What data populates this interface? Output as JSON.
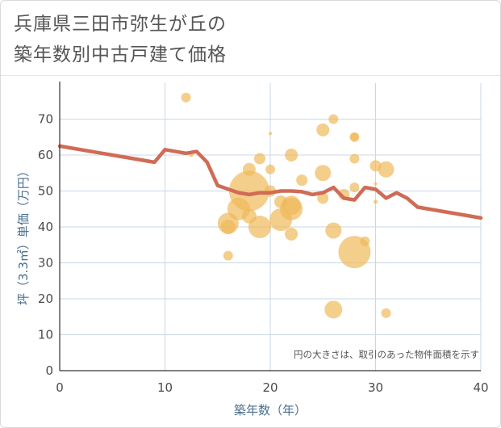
{
  "title_line1": "兵庫県三田市弥生が丘の",
  "title_line2": "築年数別中古戸建て価格",
  "chart_data": {
    "type": "scatter",
    "xlabel": "築年数（年）",
    "ylabel": "坪（3.3㎡）単価（万円）",
    "xlim": [
      0,
      40
    ],
    "ylim": [
      0,
      80
    ],
    "xticks": [
      0,
      10,
      20,
      30,
      40
    ],
    "yticks": [
      0,
      10,
      20,
      30,
      40,
      50,
      60,
      70
    ],
    "grid": true,
    "note": "円の大きさは、取引のあった物件面積を示す",
    "colors": {
      "bubble": "#f0b95a",
      "line": "#d06b55",
      "grid": "#c9d7e6",
      "axis": "#333333"
    },
    "points": [
      {
        "x": 12,
        "y": 76,
        "s": 6
      },
      {
        "x": 12.5,
        "y": 60,
        "s": 2.5
      },
      {
        "x": 16,
        "y": 41,
        "s": 13
      },
      {
        "x": 16,
        "y": 40,
        "s": 9
      },
      {
        "x": 16,
        "y": 32,
        "s": 6
      },
      {
        "x": 17,
        "y": 45,
        "s": 14
      },
      {
        "x": 18,
        "y": 56,
        "s": 8
      },
      {
        "x": 18,
        "y": 50,
        "s": 25
      },
      {
        "x": 18,
        "y": 43,
        "s": 9
      },
      {
        "x": 19,
        "y": 59,
        "s": 7
      },
      {
        "x": 19,
        "y": 40,
        "s": 14
      },
      {
        "x": 20,
        "y": 66,
        "s": 2
      },
      {
        "x": 20,
        "y": 56,
        "s": 6
      },
      {
        "x": 20,
        "y": 50,
        "s": 7
      },
      {
        "x": 21,
        "y": 47,
        "s": 8
      },
      {
        "x": 21,
        "y": 42,
        "s": 14
      },
      {
        "x": 22,
        "y": 60,
        "s": 8
      },
      {
        "x": 22,
        "y": 46,
        "s": 12
      },
      {
        "x": 22,
        "y": 45,
        "s": 14
      },
      {
        "x": 22,
        "y": 38,
        "s": 8
      },
      {
        "x": 23,
        "y": 53,
        "s": 7
      },
      {
        "x": 25,
        "y": 67,
        "s": 8
      },
      {
        "x": 25,
        "y": 55,
        "s": 10
      },
      {
        "x": 25,
        "y": 48,
        "s": 7
      },
      {
        "x": 26,
        "y": 70,
        "s": 6
      },
      {
        "x": 26,
        "y": 39,
        "s": 10
      },
      {
        "x": 26,
        "y": 17,
        "s": 11
      },
      {
        "x": 27,
        "y": 49,
        "s": 7
      },
      {
        "x": 28,
        "y": 65,
        "s": 6
      },
      {
        "x": 28,
        "y": 65,
        "s": 5
      },
      {
        "x": 28,
        "y": 59,
        "s": 6
      },
      {
        "x": 28,
        "y": 51,
        "s": 6
      },
      {
        "x": 28,
        "y": 33,
        "s": 20
      },
      {
        "x": 29,
        "y": 36,
        "s": 6
      },
      {
        "x": 30,
        "y": 57,
        "s": 7
      },
      {
        "x": 30,
        "y": 52,
        "s": 2
      },
      {
        "x": 30,
        "y": 47,
        "s": 2.5
      },
      {
        "x": 31,
        "y": 56,
        "s": 10
      },
      {
        "x": 31,
        "y": 16,
        "s": 6
      }
    ],
    "line": {
      "x": [
        0,
        9,
        10,
        12,
        13,
        14,
        15,
        17,
        18,
        19,
        20,
        21,
        22,
        23,
        24,
        25,
        26,
        27,
        28,
        29,
        30,
        31,
        32,
        33,
        34,
        40
      ],
      "y": [
        62.5,
        58,
        61.5,
        60.5,
        61,
        58,
        51.5,
        49.5,
        49,
        49.5,
        49.5,
        50,
        50,
        49.8,
        49,
        49.5,
        51,
        48,
        47.5,
        51,
        50.5,
        48,
        49.5,
        48,
        45.5,
        42.5
      ]
    }
  }
}
